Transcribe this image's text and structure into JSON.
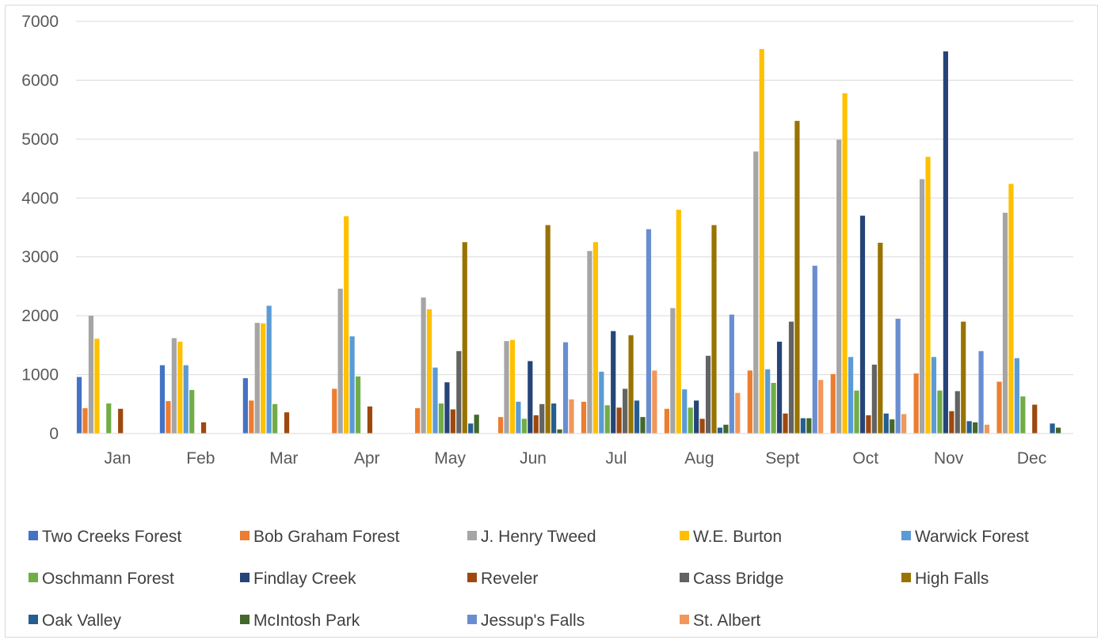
{
  "chart_data": {
    "type": "bar",
    "ylim": [
      0,
      7000
    ],
    "yticks": [
      0,
      1000,
      2000,
      3000,
      4000,
      5000,
      6000,
      7000
    ],
    "grid": true,
    "legend_position": "bottom",
    "categories": [
      "Jan",
      "Feb",
      "Mar",
      "Apr",
      "May",
      "Jun",
      "Jul",
      "Aug",
      "Sept",
      "Oct",
      "Nov",
      "Dec"
    ],
    "series": [
      {
        "name": "Two Creeks Forest",
        "color": "#4472C4",
        "values": [
          960,
          1160,
          940,
          0,
          0,
          0,
          0,
          0,
          0,
          0,
          0,
          0
        ]
      },
      {
        "name": "Bob Graham Forest",
        "color": "#ED7D31",
        "values": [
          430,
          550,
          560,
          760,
          430,
          280,
          540,
          420,
          1070,
          1010,
          1020,
          880
        ]
      },
      {
        "name": "J. Henry Tweed",
        "color": "#A5A5A5",
        "values": [
          2000,
          1620,
          1880,
          2460,
          2310,
          1570,
          3100,
          2130,
          4790,
          4990,
          4320,
          3750
        ]
      },
      {
        "name": "W.E. Burton",
        "color": "#FFC000",
        "values": [
          1610,
          1560,
          1870,
          3690,
          2110,
          1590,
          3250,
          3800,
          6530,
          5780,
          4700,
          4240
        ]
      },
      {
        "name": "Warwick Forest",
        "color": "#5B9BD5",
        "values": [
          0,
          1160,
          2170,
          1650,
          1120,
          540,
          1050,
          750,
          1090,
          1300,
          1300,
          1280
        ]
      },
      {
        "name": "Oschmann Forest",
        "color": "#70AD47",
        "values": [
          510,
          740,
          500,
          970,
          510,
          250,
          480,
          440,
          860,
          730,
          730,
          630
        ]
      },
      {
        "name": "Findlay Creek",
        "color": "#264478",
        "values": [
          0,
          0,
          0,
          0,
          870,
          1230,
          1740,
          560,
          1560,
          3700,
          6490,
          0
        ]
      },
      {
        "name": "Reveler",
        "color": "#9E480E",
        "values": [
          420,
          190,
          360,
          460,
          410,
          310,
          440,
          250,
          340,
          310,
          380,
          490
        ]
      },
      {
        "name": "Cass Bridge",
        "color": "#636363",
        "values": [
          0,
          0,
          0,
          0,
          1400,
          500,
          760,
          1320,
          1900,
          1170,
          720,
          0
        ]
      },
      {
        "name": "High Falls",
        "color": "#997300",
        "values": [
          0,
          0,
          0,
          0,
          3250,
          3540,
          1670,
          3540,
          5310,
          3240,
          1900,
          0
        ]
      },
      {
        "name": "Oak Valley",
        "color": "#255E91",
        "values": [
          0,
          0,
          0,
          0,
          170,
          510,
          560,
          100,
          260,
          340,
          210,
          170
        ]
      },
      {
        "name": "McIntosh Park",
        "color": "#43682B",
        "values": [
          0,
          0,
          0,
          0,
          320,
          70,
          280,
          150,
          260,
          240,
          190,
          100
        ]
      },
      {
        "name": "Jessup's Falls",
        "color": "#698ED0",
        "values": [
          0,
          0,
          0,
          0,
          0,
          1550,
          3470,
          2020,
          2850,
          1950,
          1400,
          0
        ]
      },
      {
        "name": "St. Albert",
        "color": "#F1975A",
        "values": [
          0,
          0,
          0,
          0,
          0,
          580,
          1070,
          690,
          910,
          330,
          150,
          0
        ]
      }
    ]
  }
}
